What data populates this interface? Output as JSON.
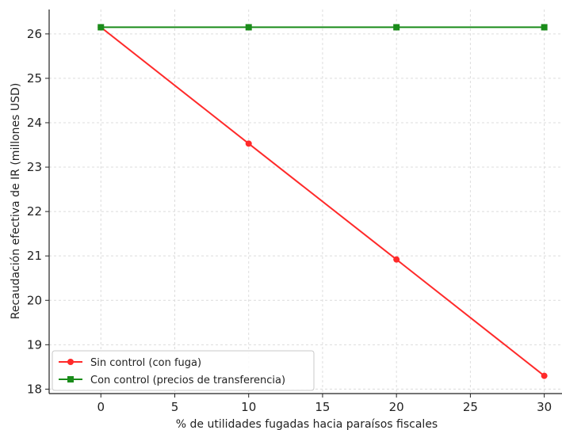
{
  "chart_data": {
    "type": "line",
    "title": "",
    "xlabel": "% de utilidades fugadas hacia paraísos fiscales",
    "ylabel": "Recaudación efectiva de IR (millones USD)",
    "xlim": [
      -3.5,
      31.2
    ],
    "ylim": [
      17.9,
      26.55
    ],
    "x_ticks": [
      0,
      5,
      10,
      15,
      20,
      25,
      30
    ],
    "y_ticks": [
      18,
      19,
      20,
      21,
      22,
      23,
      24,
      25,
      26
    ],
    "grid": true,
    "legend_position": "lower-left",
    "x": [
      0,
      10,
      20,
      30
    ],
    "series": [
      {
        "name": "Sin control (con fuga)",
        "values": [
          26.15,
          23.53,
          20.92,
          18.3
        ],
        "color": "#ff2a2a",
        "marker": "circle"
      },
      {
        "name": "Con control (precios de transferencia)",
        "values": [
          26.15,
          26.15,
          26.15,
          26.15
        ],
        "color": "#1a8c1a",
        "marker": "square"
      }
    ]
  }
}
